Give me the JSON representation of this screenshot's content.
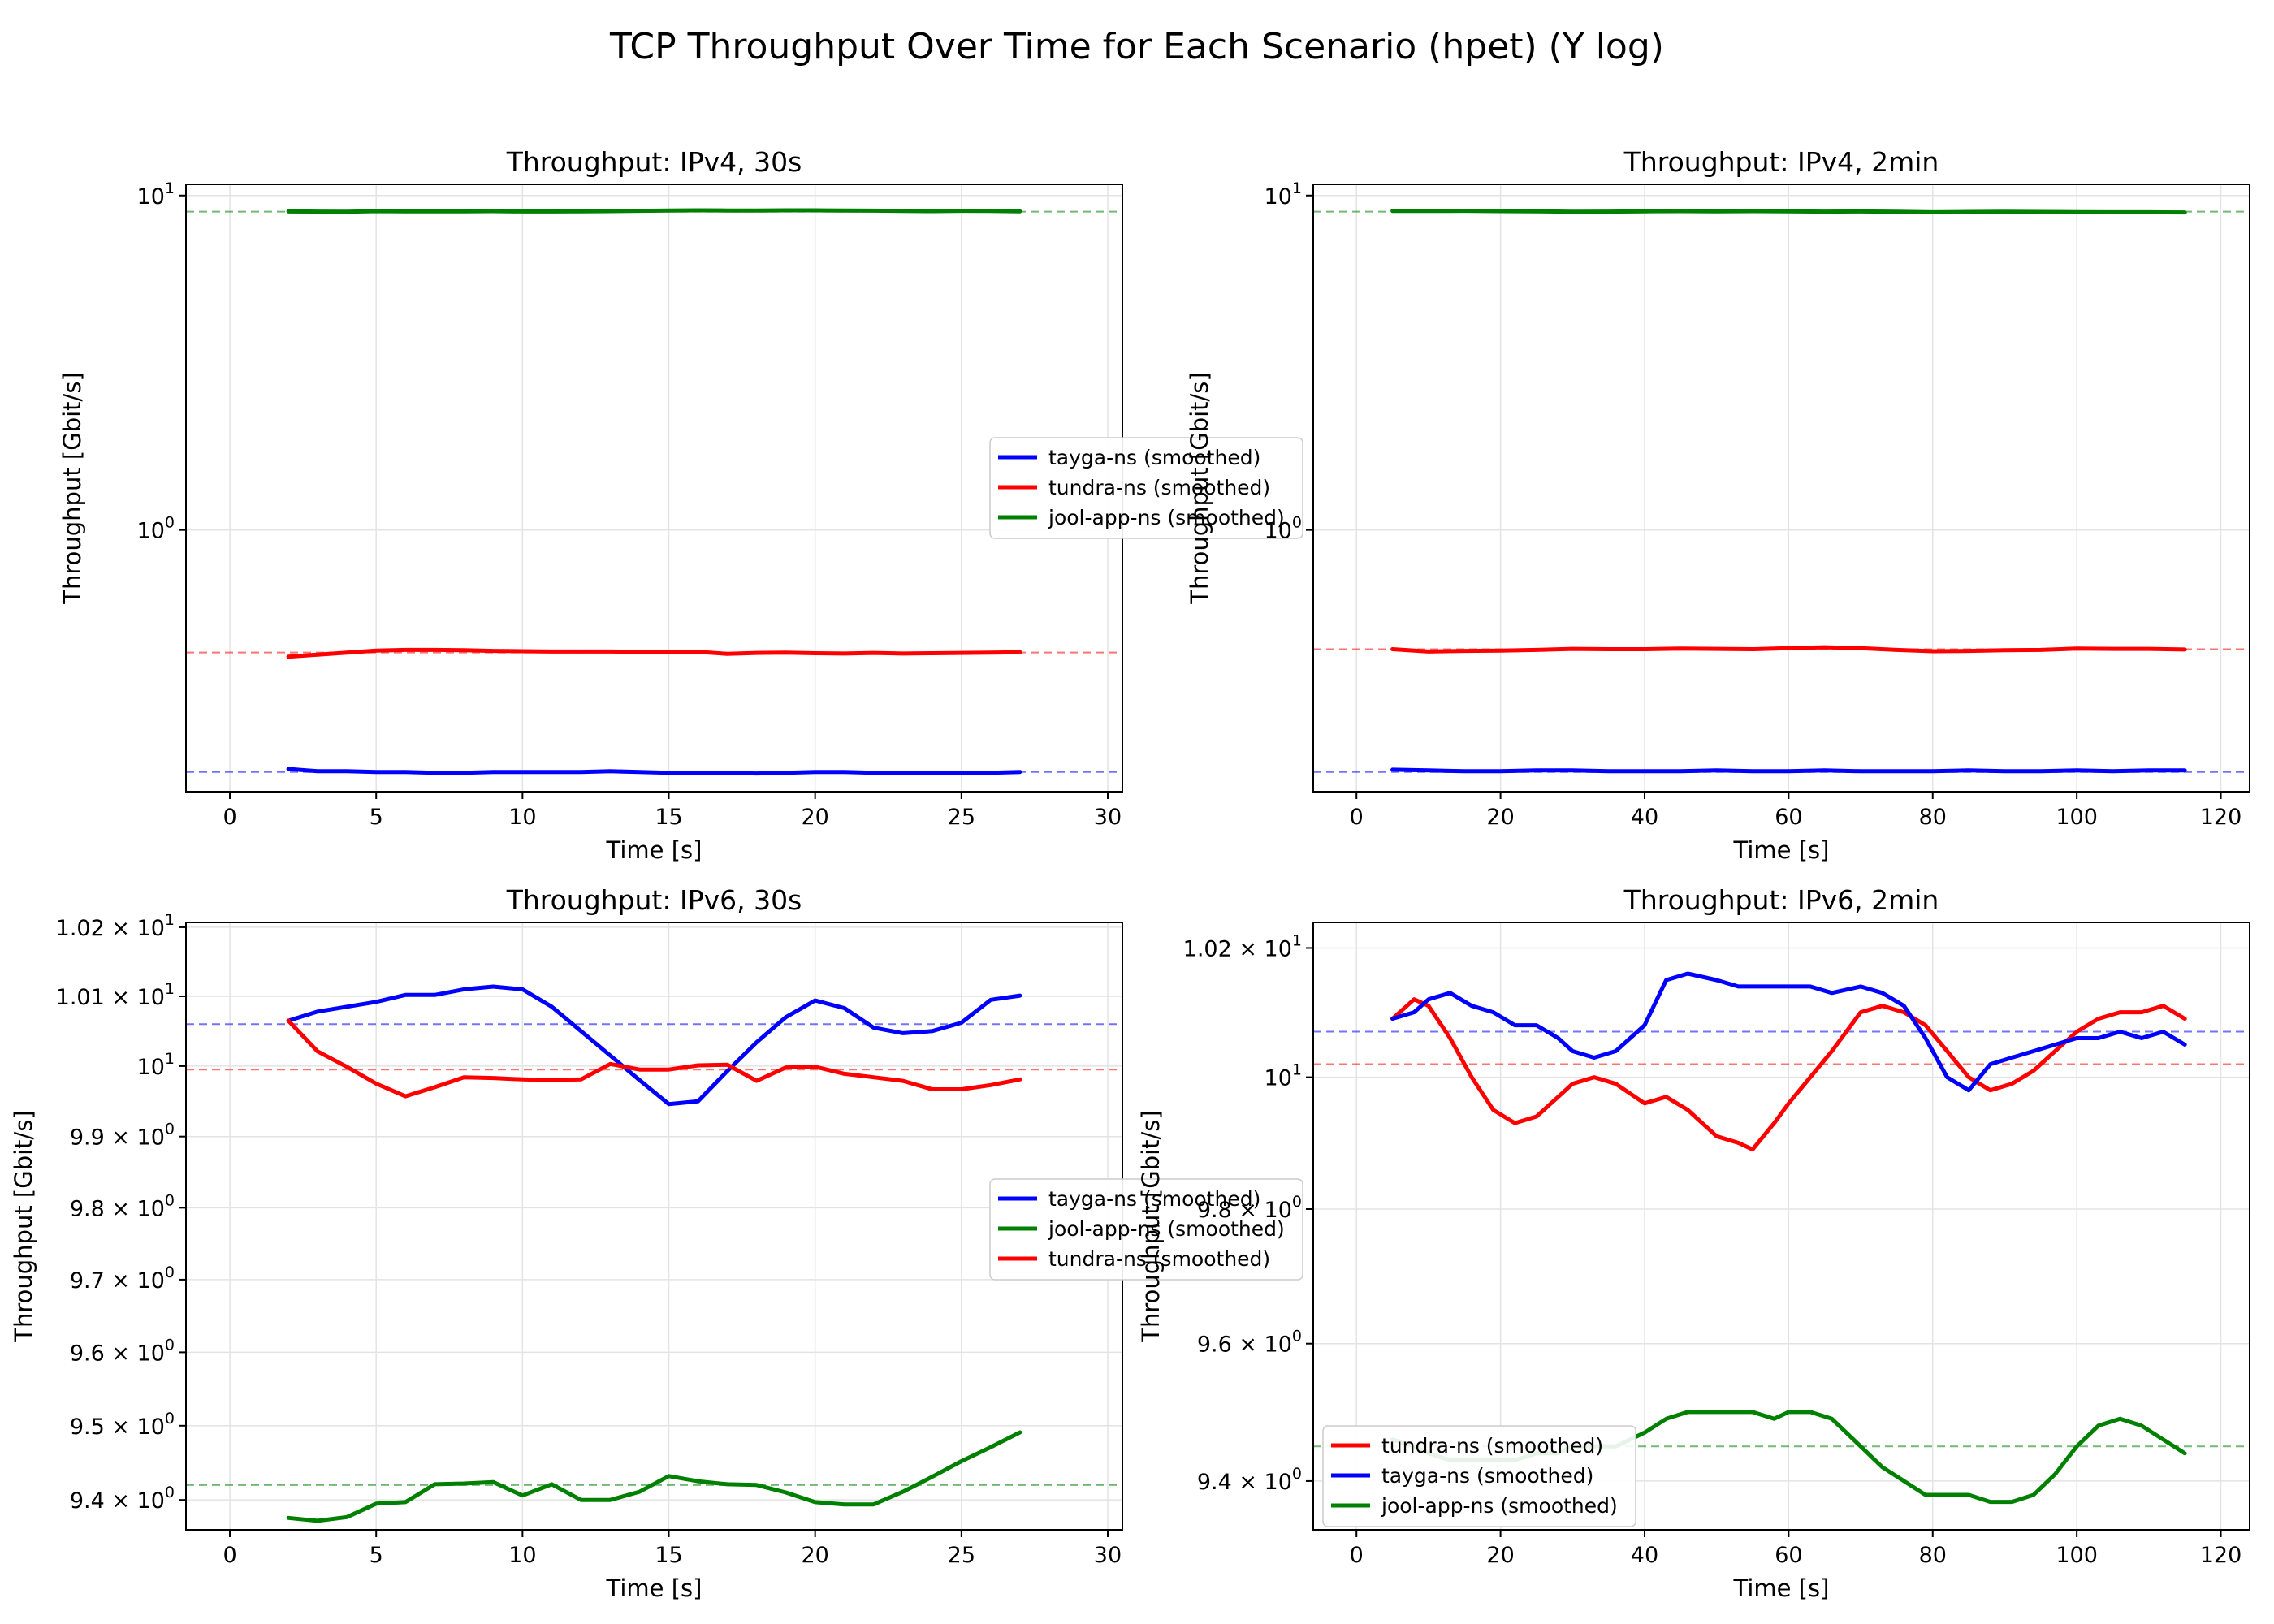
{
  "figure": {
    "title": "TCP Throughput Over Time for Each Scenario (hpet) (Y log)"
  },
  "chart_data": [
    {
      "type": "line",
      "title": "Throughput: IPv4, 30s",
      "xlabel": "Time [s]",
      "ylabel": "Throughput [Gbit/s]",
      "xlim": [
        -1.5,
        30.5
      ],
      "ylim": [
        0.165,
        10.8
      ],
      "yscale": "log",
      "grid": true,
      "legend_position": "center-right",
      "x_ticks": [
        0,
        5,
        10,
        15,
        20,
        25,
        30
      ],
      "x_tick_labels": [
        "0",
        "5",
        "10",
        "15",
        "20",
        "25",
        "30"
      ],
      "y_ticks": [
        10,
        1
      ],
      "y_tick_labels": [
        [
          "10",
          "1"
        ],
        [
          "10",
          "0"
        ]
      ],
      "series": [
        {
          "name": "tayga-ns (smoothed)",
          "color": "#0000ff",
          "mean": 0.189,
          "x": [
            2,
            3,
            4,
            5,
            6,
            7,
            8,
            9,
            10,
            11,
            12,
            13,
            14,
            15,
            16,
            17,
            18,
            19,
            20,
            21,
            22,
            23,
            24,
            25,
            26,
            27
          ],
          "y": [
            0.193,
            0.19,
            0.19,
            0.189,
            0.189,
            0.188,
            0.188,
            0.189,
            0.189,
            0.189,
            0.189,
            0.19,
            0.189,
            0.188,
            0.188,
            0.188,
            0.187,
            0.188,
            0.189,
            0.189,
            0.188,
            0.188,
            0.188,
            0.188,
            0.188,
            0.189
          ]
        },
        {
          "name": "tundra-ns (smoothed)",
          "color": "#ff0000",
          "mean": 0.43,
          "x": [
            2,
            3,
            4,
            5,
            6,
            7,
            8,
            9,
            10,
            11,
            12,
            13,
            14,
            15,
            16,
            17,
            18,
            19,
            20,
            21,
            22,
            23,
            24,
            25,
            26,
            27
          ],
          "y": [
            0.418,
            0.424,
            0.43,
            0.436,
            0.438,
            0.438,
            0.437,
            0.435,
            0.434,
            0.433,
            0.433,
            0.433,
            0.432,
            0.431,
            0.432,
            0.426,
            0.429,
            0.43,
            0.428,
            0.427,
            0.429,
            0.427,
            0.428,
            0.429,
            0.43,
            0.431
          ]
        },
        {
          "name": "jool-app-ns (smoothed)",
          "color": "#008000",
          "mean": 8.95,
          "x": [
            2,
            3,
            4,
            5,
            6,
            7,
            8,
            9,
            10,
            11,
            12,
            13,
            14,
            15,
            16,
            17,
            18,
            19,
            20,
            21,
            22,
            23,
            24,
            25,
            26,
            27
          ],
          "y": [
            8.96,
            8.95,
            8.94,
            8.98,
            8.97,
            8.97,
            8.97,
            8.98,
            8.96,
            8.96,
            8.97,
            8.98,
            9.0,
            9.02,
            9.03,
            9.02,
            9.02,
            9.03,
            9.03,
            9.02,
            9.01,
            8.99,
            8.98,
            9.0,
            8.99,
            8.97
          ]
        }
      ]
    },
    {
      "type": "line",
      "title": "Throughput: IPv4, 2min",
      "xlabel": "Time [s]",
      "ylabel": "Throughput [Gbit/s]",
      "xlim": [
        -6,
        124
      ],
      "ylim": [
        0.165,
        10.8
      ],
      "yscale": "log",
      "grid": true,
      "legend_position": "center-right",
      "x_ticks": [
        0,
        20,
        40,
        60,
        80,
        100,
        120
      ],
      "x_tick_labels": [
        "0",
        "20",
        "40",
        "60",
        "80",
        "100",
        "120"
      ],
      "y_ticks": [
        10,
        1
      ],
      "y_tick_labels": [
        [
          "10",
          "1"
        ],
        [
          "10",
          "0"
        ]
      ],
      "series": [
        {
          "name": "jool-app-ns (smoothed)",
          "color": "#008000",
          "mean": 8.95,
          "x": [
            5,
            10,
            15,
            20,
            25,
            30,
            35,
            40,
            45,
            50,
            55,
            60,
            65,
            70,
            75,
            80,
            85,
            90,
            95,
            100,
            105,
            110,
            115
          ],
          "y": [
            8.99,
            8.99,
            9.0,
            8.98,
            8.97,
            8.94,
            8.95,
            8.97,
            8.98,
            8.97,
            8.98,
            8.97,
            8.95,
            8.96,
            8.94,
            8.91,
            8.93,
            8.94,
            8.93,
            8.92,
            8.91,
            8.91,
            8.9
          ]
        },
        {
          "name": "tayga-ns (smoothed)",
          "color": "#0000ff",
          "mean": 0.189,
          "x": [
            5,
            10,
            15,
            20,
            25,
            30,
            35,
            40,
            45,
            50,
            55,
            60,
            65,
            70,
            75,
            80,
            85,
            90,
            95,
            100,
            105,
            110,
            115
          ],
          "y": [
            0.192,
            0.191,
            0.19,
            0.19,
            0.191,
            0.191,
            0.19,
            0.19,
            0.19,
            0.191,
            0.19,
            0.19,
            0.191,
            0.19,
            0.19,
            0.19,
            0.191,
            0.19,
            0.19,
            0.191,
            0.19,
            0.191,
            0.191
          ]
        },
        {
          "name": "tundra-ns (smoothed)",
          "color": "#ff0000",
          "mean": 0.44,
          "x": [
            5,
            10,
            15,
            20,
            25,
            30,
            35,
            40,
            45,
            50,
            55,
            60,
            65,
            70,
            75,
            80,
            85,
            90,
            95,
            100,
            105,
            110,
            115
          ],
          "y": [
            0.44,
            0.433,
            0.435,
            0.436,
            0.438,
            0.441,
            0.44,
            0.44,
            0.442,
            0.441,
            0.44,
            0.443,
            0.446,
            0.443,
            0.438,
            0.434,
            0.435,
            0.437,
            0.438,
            0.442,
            0.441,
            0.441,
            0.439
          ]
        }
      ]
    },
    {
      "type": "line",
      "title": "Throughput: IPv6, 30s",
      "xlabel": "Time [s]",
      "ylabel": "Throughput [Gbit/s]",
      "xlim": [
        -1.5,
        30.5
      ],
      "ylim": [
        9.36,
        10.207
      ],
      "yscale": "log",
      "grid": true,
      "legend_position": "center-right",
      "x_ticks": [
        0,
        5,
        10,
        15,
        20,
        25,
        30
      ],
      "x_tick_labels": [
        "0",
        "5",
        "10",
        "15",
        "20",
        "25",
        "30"
      ],
      "y_ticks": [
        10.2,
        10.1,
        10.0,
        9.9,
        9.8,
        9.7,
        9.6,
        9.5,
        9.4
      ],
      "y_tick_labels": [
        [
          "1.02 × 10",
          "1"
        ],
        [
          "1.01 × 10",
          "1"
        ],
        [
          "10",
          "1"
        ],
        [
          "9.9 × 10",
          "0"
        ],
        [
          "9.8 × 10",
          "0"
        ],
        [
          "9.7 × 10",
          "0"
        ],
        [
          "9.6 × 10",
          "0"
        ],
        [
          "9.5 × 10",
          "0"
        ],
        [
          "9.4 × 10",
          "0"
        ]
      ],
      "series": [
        {
          "name": "tayga-ns (smoothed)",
          "color": "#0000ff",
          "mean": 10.06,
          "x": [
            2,
            3,
            4,
            5,
            6,
            7,
            8,
            9,
            10,
            11,
            12,
            13,
            14,
            15,
            16,
            17,
            18,
            19,
            20,
            21,
            22,
            23,
            24,
            25,
            26,
            27
          ],
          "y": [
            10.065,
            10.078,
            10.085,
            10.092,
            10.102,
            10.102,
            10.11,
            10.114,
            10.11,
            10.085,
            10.05,
            10.015,
            9.98,
            9.946,
            9.95,
            9.993,
            10.034,
            10.07,
            10.094,
            10.083,
            10.055,
            10.047,
            10.05,
            10.062,
            10.095,
            10.101
          ]
        },
        {
          "name": "jool-app-ns (smoothed)",
          "color": "#008000",
          "mean": 9.42,
          "x": [
            2,
            3,
            4,
            5,
            6,
            7,
            8,
            9,
            10,
            11,
            12,
            13,
            14,
            15,
            16,
            17,
            18,
            19,
            20,
            21,
            22,
            23,
            24,
            25,
            26,
            27
          ],
          "y": [
            9.376,
            9.372,
            9.377,
            9.395,
            9.397,
            9.421,
            9.422,
            9.424,
            9.406,
            9.421,
            9.4,
            9.4,
            9.411,
            9.432,
            9.425,
            9.421,
            9.42,
            9.41,
            9.397,
            9.394,
            9.394,
            9.411,
            9.431,
            9.452,
            9.471,
            9.491
          ]
        },
        {
          "name": "tundra-ns (smoothed)",
          "color": "#ff0000",
          "mean": 9.995,
          "x": [
            2,
            3,
            4,
            5,
            6,
            7,
            8,
            9,
            10,
            11,
            12,
            13,
            14,
            15,
            16,
            17,
            18,
            19,
            20,
            21,
            22,
            23,
            24,
            25,
            26,
            27
          ],
          "y": [
            10.065,
            10.021,
            9.999,
            9.975,
            9.957,
            9.97,
            9.984,
            9.983,
            9.981,
            9.98,
            9.981,
            10.003,
            9.995,
            9.995,
            10.001,
            10.002,
            9.979,
            9.998,
            9.999,
            9.989,
            9.984,
            9.979,
            9.967,
            9.967,
            9.973,
            9.981
          ]
        }
      ]
    },
    {
      "type": "line",
      "title": "Throughput: IPv6, 2min",
      "xlabel": "Time [s]",
      "ylabel": "Throughput [Gbit/s]",
      "xlim": [
        -6,
        124
      ],
      "ylim": [
        9.33,
        10.24
      ],
      "yscale": "log",
      "grid": true,
      "legend_position": "lower-left",
      "x_ticks": [
        0,
        20,
        40,
        60,
        80,
        100,
        120
      ],
      "x_tick_labels": [
        "0",
        "20",
        "40",
        "60",
        "80",
        "100",
        "120"
      ],
      "y_ticks": [
        10.2,
        10.0,
        9.8,
        9.6,
        9.4
      ],
      "y_tick_labels": [
        [
          "1.02 × 10",
          "1"
        ],
        [
          "10",
          "1"
        ],
        [
          "9.8 × 10",
          "0"
        ],
        [
          "9.6 × 10",
          "0"
        ],
        [
          "9.4 × 10",
          "0"
        ]
      ],
      "series": [
        {
          "name": "tundra-ns (smoothed)",
          "color": "#ff0000",
          "mean": 10.02,
          "x": [
            5,
            8,
            10,
            13,
            16,
            19,
            22,
            25,
            28,
            30,
            33,
            36,
            40,
            43,
            46,
            50,
            53,
            55,
            58,
            60,
            63,
            66,
            70,
            73,
            76,
            79,
            82,
            85,
            88,
            91,
            94,
            97,
            100,
            103,
            106,
            109,
            112,
            115
          ],
          "y": [
            10.09,
            10.12,
            10.11,
            10.06,
            10.0,
            9.95,
            9.93,
            9.94,
            9.97,
            9.99,
            10.0,
            9.99,
            9.96,
            9.97,
            9.95,
            9.91,
            9.9,
            9.89,
            9.93,
            9.96,
            10.0,
            10.04,
            10.1,
            10.11,
            10.1,
            10.08,
            10.04,
            10.0,
            9.98,
            9.99,
            10.01,
            10.04,
            10.07,
            10.09,
            10.1,
            10.1,
            10.11,
            10.09
          ]
        },
        {
          "name": "tayga-ns (smoothed)",
          "color": "#0000ff",
          "mean": 10.07,
          "x": [
            5,
            8,
            10,
            13,
            16,
            19,
            22,
            25,
            28,
            30,
            33,
            36,
            40,
            43,
            46,
            50,
            53,
            55,
            58,
            60,
            63,
            66,
            70,
            73,
            76,
            79,
            82,
            85,
            88,
            91,
            94,
            97,
            100,
            103,
            106,
            109,
            112,
            115
          ],
          "y": [
            10.09,
            10.1,
            10.12,
            10.13,
            10.11,
            10.1,
            10.08,
            10.08,
            10.06,
            10.04,
            10.03,
            10.04,
            10.08,
            10.15,
            10.16,
            10.15,
            10.14,
            10.14,
            10.14,
            10.14,
            10.14,
            10.13,
            10.14,
            10.13,
            10.11,
            10.06,
            10.0,
            9.98,
            10.02,
            10.03,
            10.04,
            10.05,
            10.06,
            10.06,
            10.07,
            10.06,
            10.07,
            10.05
          ]
        },
        {
          "name": "jool-app-ns (smoothed)",
          "color": "#008000",
          "mean": 9.45,
          "x": [
            5,
            8,
            10,
            13,
            16,
            19,
            22,
            25,
            28,
            30,
            33,
            36,
            40,
            43,
            46,
            50,
            53,
            55,
            58,
            60,
            63,
            66,
            70,
            73,
            76,
            79,
            82,
            85,
            88,
            91,
            94,
            97,
            100,
            103,
            106,
            109,
            112,
            115
          ],
          "y": [
            9.46,
            9.45,
            9.44,
            9.43,
            9.43,
            9.43,
            9.43,
            9.44,
            9.44,
            9.45,
            9.45,
            9.45,
            9.47,
            9.49,
            9.5,
            9.5,
            9.5,
            9.5,
            9.49,
            9.5,
            9.5,
            9.49,
            9.45,
            9.42,
            9.4,
            9.38,
            9.38,
            9.38,
            9.37,
            9.37,
            9.38,
            9.41,
            9.45,
            9.48,
            9.49,
            9.48,
            9.46,
            9.44
          ]
        }
      ]
    }
  ]
}
